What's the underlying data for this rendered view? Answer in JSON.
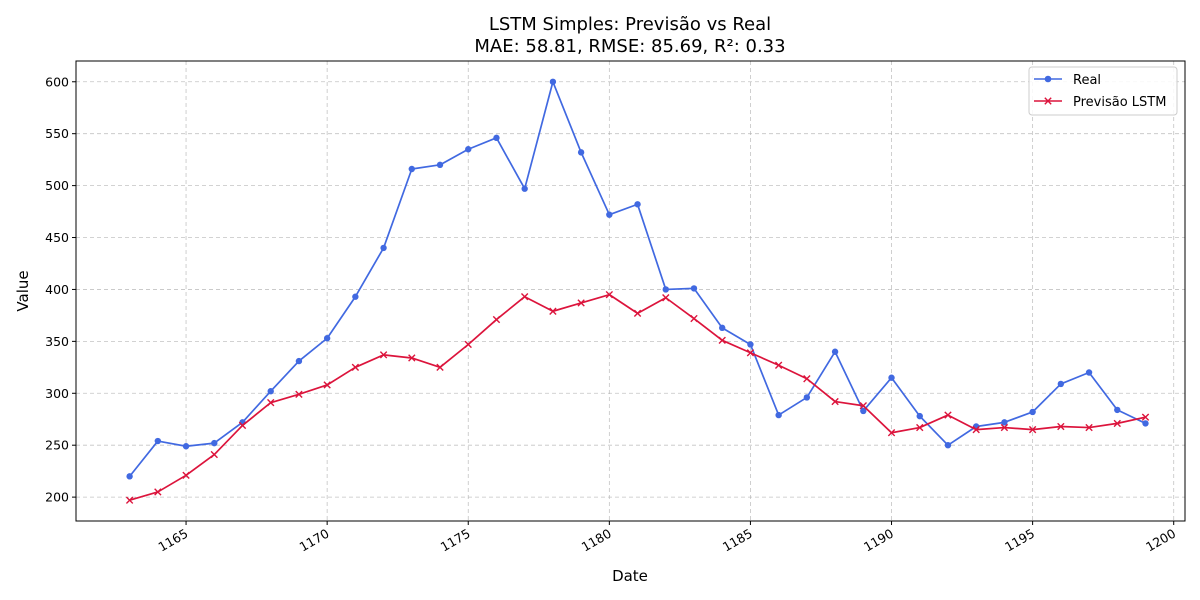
{
  "chart_data": {
    "type": "line",
    "title": "LSTM Simples: Previsão vs Real",
    "subtitle": "MAE: 58.81, RMSE: 85.69, R²: 0.33",
    "xlabel": "Date",
    "ylabel": "Value",
    "xlim": [
      1161.1,
      1200.4
    ],
    "ylim": [
      177,
      620
    ],
    "xticks": [
      1165,
      1170,
      1175,
      1180,
      1185,
      1190,
      1195,
      1200
    ],
    "yticks": [
      200,
      250,
      300,
      350,
      400,
      450,
      500,
      550,
      600
    ],
    "grid": true,
    "legend_position": "top-right",
    "x": [
      1163,
      1164,
      1165,
      1166,
      1167,
      1168,
      1169,
      1170,
      1171,
      1172,
      1173,
      1174,
      1175,
      1176,
      1177,
      1178,
      1179,
      1180,
      1181,
      1182,
      1183,
      1184,
      1185,
      1186,
      1187,
      1188,
      1189,
      1190,
      1191,
      1192,
      1193,
      1194,
      1195,
      1196,
      1197,
      1198,
      1199
    ],
    "series": [
      {
        "name": "Real",
        "color": "#4169e1",
        "marker": "circle",
        "values": [
          220,
          254,
          249,
          252,
          272,
          302,
          331,
          353,
          393,
          440,
          516,
          520,
          535,
          546,
          497,
          600,
          532,
          472,
          482,
          400,
          401,
          363,
          347,
          279,
          296,
          340,
          283,
          315,
          278,
          250,
          268,
          272,
          282,
          309,
          320,
          284,
          271
        ]
      },
      {
        "name": "Previsão LSTM",
        "color": "#dc143c",
        "marker": "x",
        "values": [
          197,
          205,
          221,
          241,
          269,
          291,
          299,
          308,
          325,
          337,
          334,
          325,
          347,
          371,
          393,
          379,
          387,
          395,
          377,
          392,
          372,
          351,
          339,
          327,
          314,
          292,
          288,
          262,
          267,
          279,
          265,
          267,
          265,
          268,
          267,
          271,
          277
        ]
      }
    ]
  }
}
